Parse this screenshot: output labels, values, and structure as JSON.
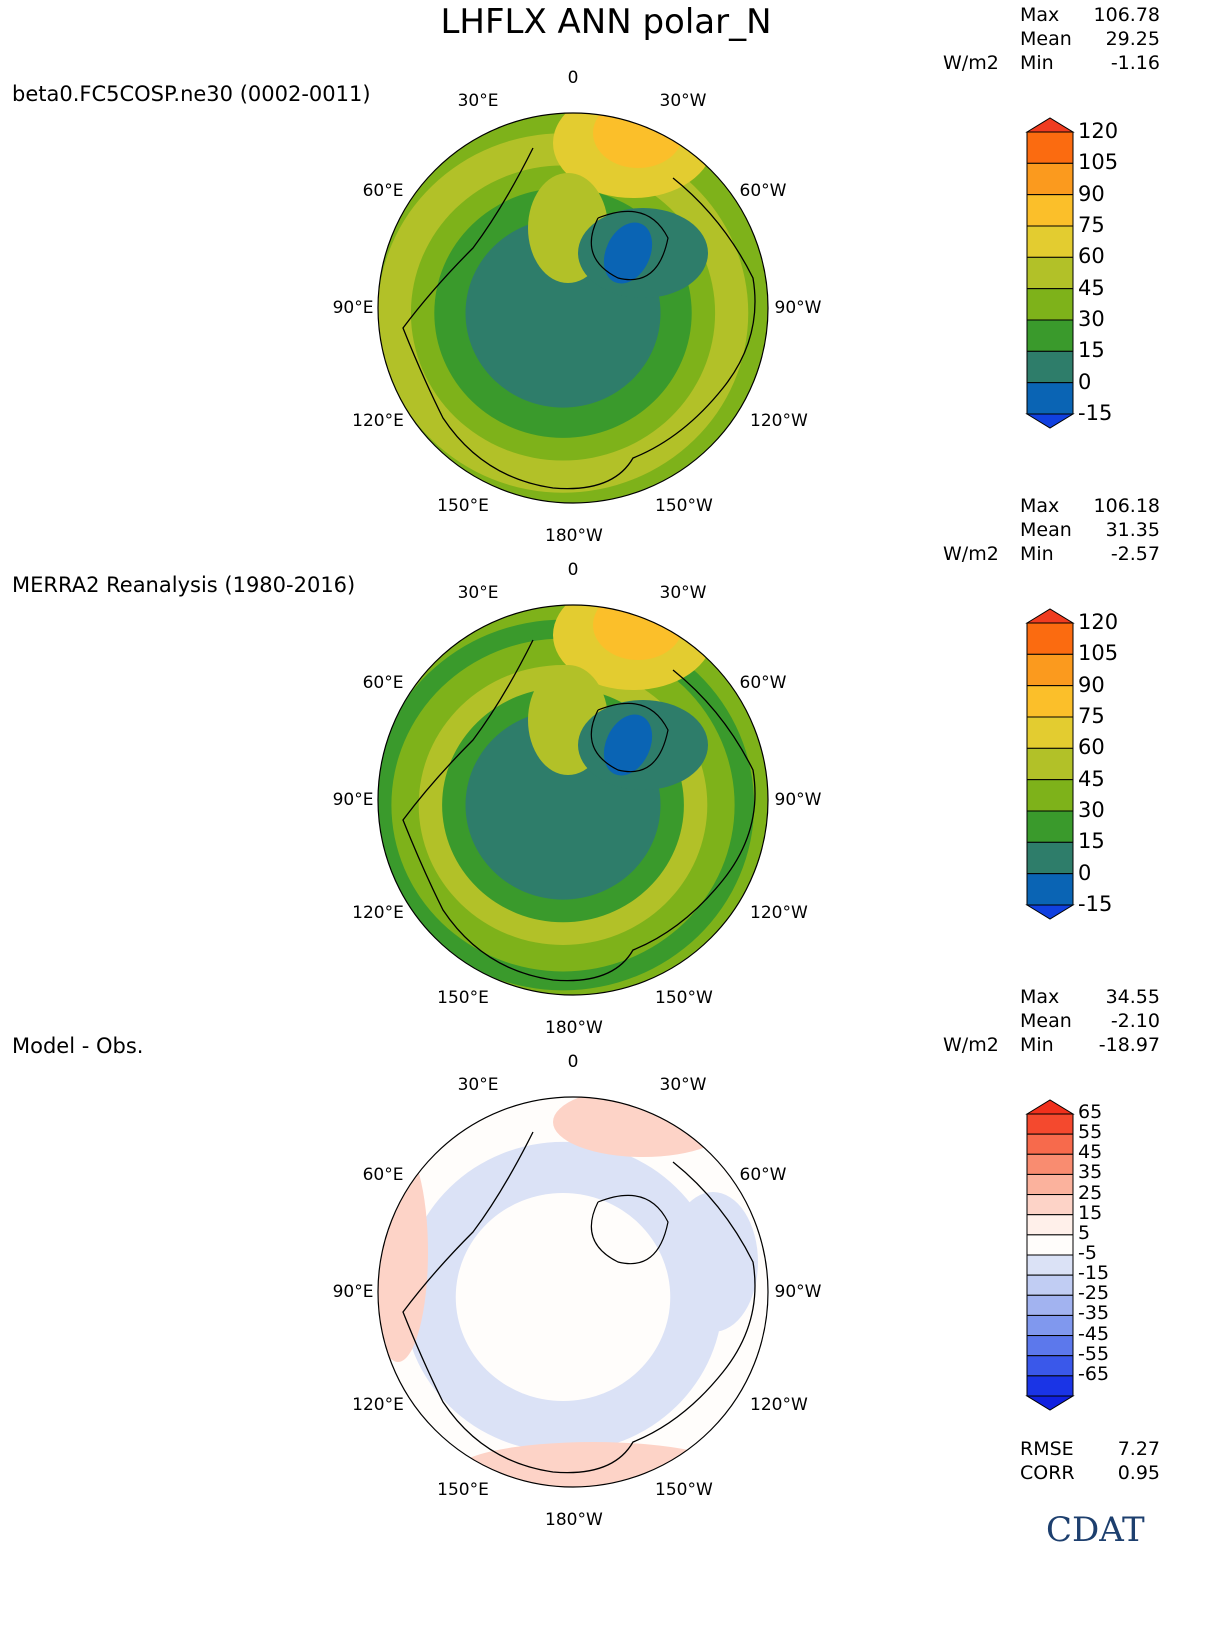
{
  "title": "LHFLX ANN polar_N",
  "units": "W/m2",
  "panels": [
    {
      "title": "beta0.FC5COSP.ne30 (0002-0011)",
      "stats": {
        "max_label": "Max",
        "max": "106.78",
        "mean_label": "Mean",
        "mean": "29.25",
        "min_label": "Min",
        "min": "-1.16"
      },
      "colorbar": {
        "labels": [
          "120",
          "105",
          "90",
          "75",
          "60",
          "45",
          "30",
          "15",
          "0",
          "-15"
        ],
        "colors": [
          "#f03c20",
          "#fb6b10",
          "#fb9a1e",
          "#fbbf2a",
          "#e3cc30",
          "#b2c128",
          "#7eb21a",
          "#3a9a2c",
          "#2e7d6a",
          "#0a64b4",
          "#1040e0"
        ]
      }
    },
    {
      "title": "MERRA2 Reanalysis (1980-2016)",
      "stats": {
        "max_label": "Max",
        "max": "106.18",
        "mean_label": "Mean",
        "mean": "31.35",
        "min_label": "Min",
        "min": "-2.57"
      },
      "colorbar": {
        "labels": [
          "120",
          "105",
          "90",
          "75",
          "60",
          "45",
          "30",
          "15",
          "0",
          "-15"
        ],
        "colors": [
          "#f03c20",
          "#fb6b10",
          "#fb9a1e",
          "#fbbf2a",
          "#e3cc30",
          "#b2c128",
          "#7eb21a",
          "#3a9a2c",
          "#2e7d6a",
          "#0a64b4",
          "#1040e0"
        ]
      }
    },
    {
      "title": "Model - Obs.",
      "stats": {
        "max_label": "Max",
        "max": "34.55",
        "mean_label": "Mean",
        "mean": "-2.10",
        "min_label": "Min",
        "min": "-18.97"
      },
      "colorbar": {
        "labels": [
          "65",
          "55",
          "45",
          "35",
          "25",
          "15",
          "5",
          "-5",
          "-15",
          "-25",
          "-35",
          "-45",
          "-55",
          "-65"
        ],
        "colors": [
          "#f0301c",
          "#f4492e",
          "#f76a4c",
          "#f98c70",
          "#fbb29d",
          "#fdd3c7",
          "#fff0ea",
          "#fffdfb",
          "#dbe2f6",
          "#c1cdf3",
          "#a2b3f0",
          "#8098ee",
          "#5c78ec",
          "#3a58ea",
          "#1a34e6",
          "#1020e0"
        ]
      },
      "rmse_label": "RMSE",
      "rmse": "7.27",
      "corr_label": "CORR",
      "corr": "0.95"
    }
  ],
  "longitude_labels": [
    "0",
    "30°E",
    "30°W",
    "60°E",
    "60°W",
    "90°E",
    "90°W",
    "120°E",
    "120°W",
    "150°E",
    "150°W",
    "180°W"
  ],
  "logo_text": "CDAT",
  "chart_data": [
    {
      "type": "heatmap",
      "projection": "polar stereographic (north)",
      "title": "beta0.FC5COSP.ne30 (0002-0011)",
      "variable": "LHFLX",
      "units": "W/m2",
      "max": 106.78,
      "mean": 29.25,
      "min": -1.16,
      "levels": [
        -15,
        0,
        15,
        30,
        45,
        60,
        75,
        90,
        105,
        120
      ]
    },
    {
      "type": "heatmap",
      "projection": "polar stereographic (north)",
      "title": "MERRA2 Reanalysis (1980-2016)",
      "variable": "LHFLX",
      "units": "W/m2",
      "max": 106.18,
      "mean": 31.35,
      "min": -2.57,
      "levels": [
        -15,
        0,
        15,
        30,
        45,
        60,
        75,
        90,
        105,
        120
      ]
    },
    {
      "type": "heatmap",
      "projection": "polar stereographic (north)",
      "title": "Model - Obs.",
      "variable": "LHFLX",
      "units": "W/m2",
      "max": 34.55,
      "mean": -2.1,
      "min": -18.97,
      "rmse": 7.27,
      "corr": 0.95,
      "levels": [
        -65,
        -55,
        -45,
        -35,
        -25,
        -15,
        -5,
        5,
        15,
        25,
        35,
        45,
        55,
        65
      ]
    }
  ]
}
